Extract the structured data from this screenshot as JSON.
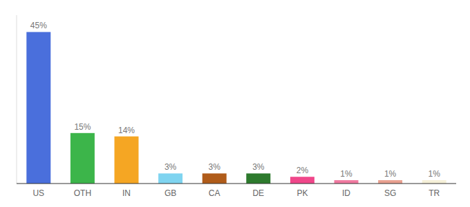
{
  "chart_data": {
    "type": "bar",
    "categories": [
      "US",
      "OTH",
      "IN",
      "GB",
      "CA",
      "DE",
      "PK",
      "ID",
      "SG",
      "TR"
    ],
    "values": [
      45,
      15,
      14,
      3,
      3,
      3,
      2,
      1,
      1,
      1
    ],
    "value_labels": [
      "45%",
      "15%",
      "14%",
      "3%",
      "3%",
      "3%",
      "2%",
      "1%",
      "1%",
      "1%"
    ],
    "colors": [
      "#4a6fdc",
      "#3cb54a",
      "#f5a623",
      "#7fd4f0",
      "#b05c1a",
      "#2d7a2d",
      "#f0478a",
      "#f07aa0",
      "#e8a090",
      "#f5f0d8"
    ],
    "ylim": [
      0,
      50
    ],
    "data_labels": true,
    "tick_labels": "x"
  }
}
